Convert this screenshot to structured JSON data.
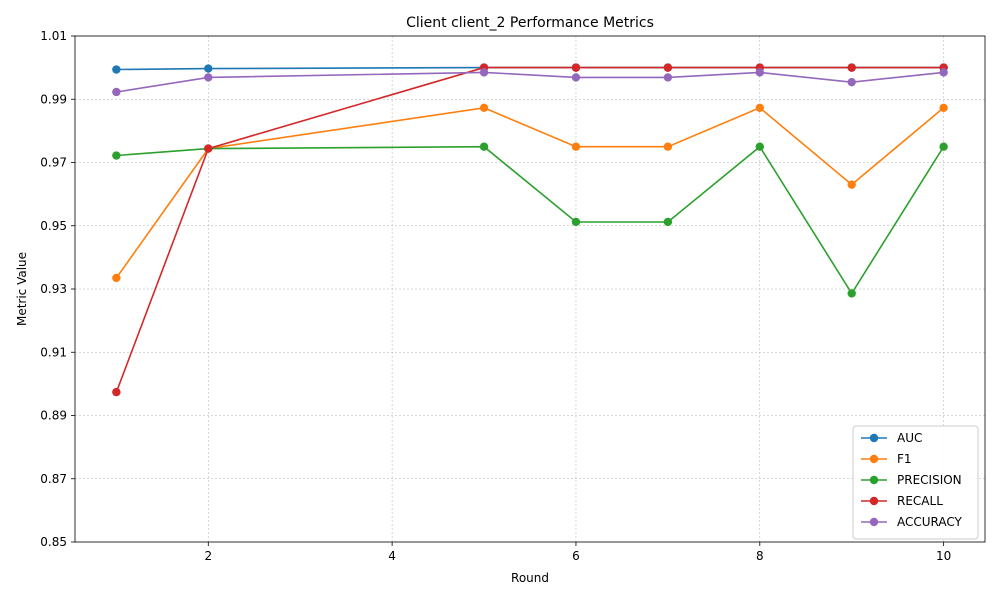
{
  "chart_data": {
    "type": "line",
    "title": "Client client_2 Performance Metrics",
    "xlabel": "Round",
    "ylabel": "Metric Value",
    "xlim": [
      0.55,
      10.45
    ],
    "ylim": [
      0.85,
      1.01
    ],
    "xticks": [
      2,
      4,
      6,
      8,
      10
    ],
    "yticks": [
      0.85,
      0.87,
      0.89,
      0.91,
      0.93,
      0.95,
      0.97,
      0.99,
      1.01
    ],
    "ytick_labels": [
      "0.85",
      "0.87",
      "0.89",
      "0.91",
      "0.93",
      "0.95",
      "0.97",
      "0.99",
      "1.01"
    ],
    "grid": true,
    "legend_position": "bottom-right",
    "x": [
      1,
      2,
      5,
      6,
      7,
      8,
      9,
      10
    ],
    "series": [
      {
        "name": "AUC",
        "color": "#1f77b4",
        "values": [
          0.9994,
          0.9997,
          1.0,
          1.0,
          1.0,
          1.0,
          1.0,
          1.0
        ]
      },
      {
        "name": "F1",
        "color": "#ff7f0e",
        "values": [
          0.9335,
          0.9744,
          0.9873,
          0.975,
          0.975,
          0.9873,
          0.963,
          0.9873
        ]
      },
      {
        "name": "PRECISION",
        "color": "#2ca02c",
        "values": [
          0.9722,
          0.9744,
          0.975,
          0.9512,
          0.9512,
          0.975,
          0.9286,
          0.975
        ]
      },
      {
        "name": "RECALL",
        "color": "#d62728",
        "values": [
          0.8974,
          0.9744,
          1.0,
          1.0,
          1.0,
          1.0,
          1.0,
          1.0
        ]
      },
      {
        "name": "ACCURACY",
        "color": "#9467bd",
        "values": [
          0.9923,
          0.9969,
          0.9985,
          0.9969,
          0.9969,
          0.9985,
          0.9954,
          0.9985
        ]
      }
    ]
  }
}
